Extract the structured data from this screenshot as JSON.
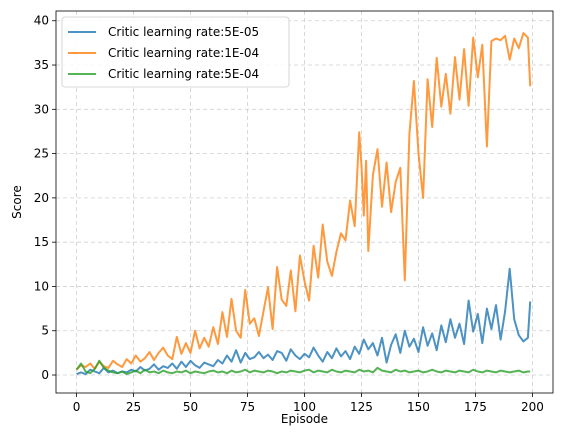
{
  "chart_data": {
    "type": "line",
    "xlabel": "Episode",
    "ylabel": "Score",
    "xlim": [
      -9,
      209
    ],
    "ylim": [
      -2.03,
      41.1
    ],
    "xticks": [
      0,
      25,
      50,
      75,
      100,
      125,
      150,
      175,
      200
    ],
    "yticks": [
      0,
      5,
      10,
      15,
      20,
      25,
      30,
      35,
      40
    ],
    "grid": true,
    "legend_position": "top-left",
    "series": [
      {
        "name": "Critic learning rate:5E-05",
        "color": "#1f77b4",
        "x": [
          0,
          2,
          4,
          6,
          8,
          10,
          12,
          14,
          16,
          18,
          20,
          22,
          24,
          26,
          28,
          30,
          32,
          34,
          36,
          38,
          40,
          42,
          44,
          46,
          48,
          50,
          52,
          54,
          56,
          58,
          60,
          62,
          64,
          66,
          68,
          70,
          72,
          74,
          76,
          78,
          80,
          82,
          84,
          86,
          88,
          90,
          92,
          94,
          96,
          98,
          100,
          102,
          104,
          106,
          108,
          110,
          112,
          114,
          116,
          118,
          120,
          122,
          124,
          126,
          128,
          130,
          132,
          134,
          136,
          138,
          140,
          142,
          144,
          146,
          148,
          150,
          152,
          154,
          156,
          158,
          160,
          162,
          164,
          166,
          168,
          170,
          172,
          174,
          176,
          178,
          180,
          182,
          184,
          186,
          188,
          190,
          192,
          194,
          196,
          198,
          199
        ],
        "y": [
          0.1,
          0.3,
          0.1,
          0.6,
          0.4,
          0.2,
          0.8,
          0.3,
          0.5,
          0.2,
          0.4,
          0.3,
          0.6,
          0.4,
          0.9,
          0.5,
          0.7,
          1.2,
          0.6,
          1.0,
          0.8,
          1.3,
          0.7,
          1.5,
          0.9,
          1.6,
          1.1,
          0.8,
          1.4,
          1.2,
          1.0,
          1.7,
          1.3,
          2.2,
          1.5,
          2.8,
          1.4,
          2.5,
          1.8,
          2.0,
          2.6,
          1.9,
          2.3,
          1.7,
          2.7,
          2.5,
          1.6,
          2.9,
          2.2,
          1.8,
          2.4,
          2.0,
          3.1,
          2.2,
          1.5,
          2.6,
          1.9,
          3.0,
          2.1,
          2.7,
          1.8,
          3.2,
          2.4,
          4.0,
          2.9,
          3.6,
          2.2,
          4.2,
          1.4,
          3.4,
          4.6,
          2.5,
          5.0,
          3.2,
          4.1,
          2.6,
          5.4,
          3.3,
          4.7,
          2.8,
          5.6,
          3.7,
          6.3,
          4.2,
          5.8,
          3.5,
          8.4,
          4.9,
          6.9,
          3.6,
          7.5,
          5.2,
          7.9,
          4.0,
          7.2,
          12.0,
          6.3,
          4.5,
          3.8,
          4.2,
          8.3
        ]
      },
      {
        "name": "Critic learning rate:1E-04",
        "color": "#ff7f0e",
        "x": [
          0,
          2,
          4,
          6,
          8,
          10,
          12,
          14,
          16,
          18,
          20,
          22,
          24,
          26,
          28,
          30,
          32,
          34,
          36,
          38,
          40,
          42,
          44,
          46,
          48,
          50,
          52,
          54,
          56,
          58,
          60,
          62,
          64,
          66,
          68,
          70,
          72,
          74,
          76,
          78,
          80,
          82,
          84,
          86,
          88,
          90,
          92,
          94,
          96,
          98,
          100,
          102,
          104,
          106,
          108,
          110,
          112,
          114,
          116,
          118,
          120,
          122,
          124,
          125,
          126,
          127,
          128,
          130,
          132,
          134,
          136,
          138,
          140,
          142,
          144,
          146,
          148,
          150,
          152,
          154,
          156,
          158,
          160,
          162,
          164,
          166,
          168,
          170,
          172,
          174,
          176,
          178,
          180,
          182,
          184,
          186,
          188,
          190,
          192,
          194,
          196,
          198,
          199
        ],
        "y": [
          0.6,
          1.1,
          0.9,
          1.3,
          0.7,
          1.5,
          1.0,
          0.8,
          1.6,
          1.2,
          0.9,
          1.8,
          1.3,
          2.2,
          1.5,
          1.9,
          2.6,
          1.7,
          2.5,
          3.1,
          2.2,
          1.8,
          4.3,
          2.4,
          3.6,
          2.5,
          5.0,
          3.0,
          4.2,
          3.2,
          5.4,
          3.5,
          7.1,
          4.3,
          8.6,
          5.0,
          4.2,
          9.6,
          5.8,
          6.4,
          4.4,
          7.2,
          9.9,
          5.2,
          12.2,
          8.5,
          7.8,
          11.8,
          7.2,
          13.5,
          10.6,
          8.4,
          14.6,
          11.0,
          17.0,
          12.8,
          11.2,
          13.9,
          16.0,
          15.2,
          19.7,
          16.8,
          27.4,
          23.6,
          18.0,
          24.2,
          14.0,
          22.6,
          25.5,
          19.0,
          24.0,
          18.4,
          21.8,
          23.4,
          10.7,
          27.2,
          33.2,
          25.0,
          20.0,
          33.4,
          28.0,
          35.8,
          30.3,
          34.0,
          29.5,
          35.9,
          31.1,
          36.8,
          30.4,
          38.1,
          33.6,
          37.3,
          25.8,
          37.7,
          38.0,
          37.8,
          38.3,
          35.6,
          38.0,
          36.9,
          38.6,
          38.1,
          32.6
        ]
      },
      {
        "name": "Critic learning rate:5E-04",
        "color": "#2ca02c",
        "x": [
          0,
          2,
          4,
          6,
          8,
          10,
          12,
          14,
          16,
          18,
          20,
          22,
          24,
          26,
          28,
          30,
          32,
          34,
          36,
          38,
          40,
          42,
          44,
          46,
          48,
          50,
          52,
          54,
          56,
          58,
          60,
          62,
          64,
          66,
          68,
          70,
          72,
          74,
          76,
          78,
          80,
          82,
          84,
          86,
          88,
          90,
          92,
          94,
          96,
          98,
          100,
          102,
          104,
          106,
          108,
          110,
          112,
          114,
          116,
          118,
          120,
          122,
          124,
          126,
          128,
          130,
          132,
          134,
          136,
          138,
          140,
          142,
          144,
          146,
          148,
          150,
          152,
          154,
          156,
          158,
          160,
          162,
          164,
          166,
          168,
          170,
          172,
          174,
          176,
          178,
          180,
          182,
          184,
          186,
          188,
          190,
          192,
          194,
          196,
          198,
          199
        ],
        "y": [
          0.6,
          1.3,
          0.4,
          0.2,
          0.7,
          1.6,
          0.8,
          0.5,
          0.3,
          0.2,
          0.4,
          0.1,
          0.3,
          0.5,
          0.2,
          0.6,
          0.3,
          0.4,
          0.2,
          0.5,
          0.3,
          0.2,
          0.4,
          0.3,
          0.5,
          0.2,
          0.4,
          0.3,
          0.2,
          0.4,
          0.5,
          0.3,
          0.4,
          0.2,
          0.5,
          0.3,
          0.4,
          0.6,
          0.3,
          0.5,
          0.4,
          0.3,
          0.5,
          0.4,
          0.2,
          0.4,
          0.3,
          0.5,
          0.4,
          0.3,
          0.5,
          0.6,
          0.3,
          0.5,
          0.4,
          0.3,
          0.6,
          0.4,
          0.3,
          0.5,
          0.4,
          0.3,
          0.6,
          0.4,
          0.5,
          0.3,
          0.8,
          0.5,
          0.4,
          0.3,
          0.6,
          0.4,
          0.5,
          0.3,
          0.4,
          0.5,
          0.3,
          0.4,
          0.6,
          0.4,
          0.3,
          0.5,
          0.4,
          0.3,
          0.5,
          0.4,
          0.3,
          0.6,
          0.4,
          0.3,
          0.5,
          0.4,
          0.3,
          0.5,
          0.4,
          0.3,
          0.4,
          0.5,
          0.3,
          0.4,
          0.4
        ]
      }
    ]
  }
}
